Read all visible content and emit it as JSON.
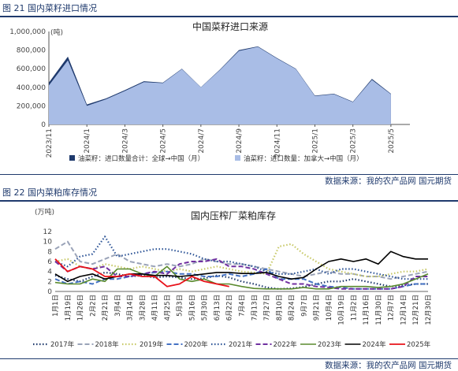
{
  "fig1_caption": "图 21  国内菜籽进口情况",
  "fig2_caption": "图 22  国内菜粕库存情况",
  "source1": "数据来源：我的农产品网  国元期货",
  "source2": "数据来源：我的农产品网  国元期货",
  "colors": {
    "dark": "#1f3a6d",
    "light": "#a9bde6",
    "c2017": "#1f3a6d",
    "c2018": "#9aa3b8",
    "c2019": "#c7c866",
    "c2020": "#4472c4",
    "c2021": "#2e5597",
    "c2022": "#7030a0",
    "c2023": "#5a8a2e",
    "c2024": "#000000",
    "c2025": "#e8121a"
  },
  "chart_data": [
    {
      "type": "area",
      "title": "中国菜籽进口来源",
      "ylabel": "(吨)",
      "ylim": [
        0,
        1000000
      ],
      "yticks": [
        "0",
        "200,000",
        "400,000",
        "600,000",
        "800,000",
        "1,000,000"
      ],
      "xticklabels": [
        "2023/11",
        "2024/1",
        "2024/3",
        "2024/5",
        "2024/7",
        "2024/9",
        "2024/11",
        "2025/1",
        "2025/3",
        "2025/5"
      ],
      "x": [
        "2023/11",
        "2023/12",
        "2024/1",
        "2024/2",
        "2024/3",
        "2024/4",
        "2024/5",
        "2024/6",
        "2024/7",
        "2024/8",
        "2024/9",
        "2024/10",
        "2024/11",
        "2024/12",
        "2025/1",
        "2025/2",
        "2025/3",
        "2025/4",
        "2025/5",
        "2025/6"
      ],
      "series": [
        {
          "name": "油菜籽：进口数量合计：全球→中国（月）",
          "values": [
            450000,
            730000,
            215000,
            280000,
            370000,
            465000,
            450000,
            600000,
            400000,
            590000,
            800000,
            840000,
            715000,
            600000,
            310000,
            330000,
            245000,
            490000,
            330000,
            null
          ]
        },
        {
          "name": "油菜籽：进口数量：加拿大→中国（月）",
          "values": [
            420000,
            690000,
            200000,
            270000,
            360000,
            455000,
            445000,
            595000,
            398000,
            585000,
            790000,
            835000,
            710000,
            595000,
            305000,
            325000,
            240000,
            480000,
            325000,
            null
          ]
        }
      ],
      "legend": "bottom"
    },
    {
      "type": "line",
      "title": "国内压榨厂菜粕库存",
      "ylabel": "(万吨)",
      "ylim": [
        0,
        12
      ],
      "yticks": [
        "0",
        "2",
        "4",
        "6",
        "8",
        "10",
        "12"
      ],
      "categories": [
        "1月1日",
        "1月19日",
        "1月26日",
        "2月2日",
        "2月21日",
        "3月4日",
        "3月14日",
        "3月28日",
        "4月11日",
        "4月25日",
        "5月3日",
        "5月16日",
        "5月30日",
        "6月13日",
        "6月22日",
        "7月4日",
        "7月13日",
        "7月27日",
        "8月10日",
        "8月24日",
        "9月7日",
        "9月21日",
        "10月4日",
        "10月19日",
        "11月2日",
        "11月16日",
        "11月30日",
        "12月7日",
        "12月14日",
        "12月21日",
        "12月30日"
      ],
      "series": [
        {
          "name": "2017年",
          "values": [
            3.2,
            2.5,
            2.0,
            3.0,
            3.8,
            3.5,
            3.0,
            3.2,
            2.8,
            3.0,
            2.8,
            2.5,
            2.6,
            3.2,
            2.8,
            2.0,
            1.5,
            0.8,
            0.5,
            0.6,
            0.9,
            1.5,
            2.0,
            2.0,
            2.5,
            2.0,
            1.5,
            1.0,
            1.2,
            1.5,
            1.5
          ]
        },
        {
          "name": "2018年",
          "values": [
            8.5,
            10.0,
            6.0,
            5.5,
            6.5,
            7.5,
            6.0,
            5.5,
            5.0,
            5.5,
            5.0,
            5.5,
            6.5,
            6.0,
            5.5,
            5.5,
            5.0,
            4.5,
            4.0,
            3.5,
            3.0,
            3.5,
            4.0,
            3.5,
            3.5,
            3.0,
            3.0,
            2.5,
            3.0,
            3.5,
            4.0
          ]
        },
        {
          "name": "2019年",
          "values": [
            6.0,
            6.5,
            5.0,
            4.5,
            5.5,
            5.0,
            4.5,
            5.0,
            4.5,
            4.0,
            4.5,
            4.0,
            4.5,
            5.0,
            4.5,
            4.0,
            3.8,
            3.5,
            9.0,
            9.5,
            7.5,
            6.0,
            4.5,
            4.0,
            3.5,
            3.0,
            3.0,
            3.5,
            4.0,
            4.0,
            4.5
          ]
        },
        {
          "name": "2020年",
          "values": [
            2.5,
            1.5,
            2.0,
            1.5,
            2.5,
            2.5,
            3.0,
            3.5,
            3.8,
            4.0,
            3.5,
            3.5,
            3.0,
            3.0,
            3.5,
            3.0,
            3.5,
            4.5,
            2.5,
            2.5,
            2.5,
            1.5,
            1.0,
            0.8,
            0.5,
            0.5,
            0.5,
            0.5,
            1.0,
            1.5,
            1.5
          ]
        },
        {
          "name": "2021年",
          "values": [
            6.0,
            5.0,
            7.0,
            7.5,
            11.0,
            7.0,
            7.5,
            8.0,
            8.5,
            8.5,
            8.0,
            7.5,
            6.5,
            6.0,
            6.0,
            5.5,
            5.0,
            4.0,
            3.5,
            3.5,
            4.0,
            4.5,
            3.5,
            4.5,
            4.5,
            4.0,
            3.5,
            3.0,
            2.5,
            2.5,
            2.5
          ]
        },
        {
          "name": "2022年",
          "values": [
            6.0,
            4.0,
            5.0,
            4.5,
            5.0,
            3.0,
            3.0,
            3.5,
            4.0,
            3.5,
            5.5,
            6.0,
            6.0,
            6.5,
            5.0,
            5.0,
            4.5,
            3.5,
            2.5,
            1.5,
            1.5,
            1.0,
            0.8,
            0.5,
            0.5,
            0.5,
            0.5,
            0.5,
            1.0,
            3.0,
            3.0
          ]
        },
        {
          "name": "2023年",
          "values": [
            1.8,
            1.5,
            1.5,
            2.5,
            2.0,
            4.5,
            4.5,
            3.5,
            3.0,
            5.0,
            2.5,
            2.0,
            2.5,
            1.5,
            1.5,
            1.0,
            0.6,
            0.5,
            0.5,
            0.5,
            0.8,
            0.5,
            0.5,
            1.0,
            1.0,
            1.0,
            0.8,
            1.0,
            1.5,
            2.5,
            3.5
          ]
        },
        {
          "name": "2024年",
          "values": [
            3.5,
            2.0,
            3.0,
            3.5,
            2.5,
            3.0,
            3.5,
            3.5,
            3.2,
            3.2,
            3.0,
            3.2,
            3.5,
            3.8,
            3.8,
            3.6,
            3.6,
            3.8,
            3.0,
            2.5,
            2.8,
            4.5,
            6.0,
            6.5,
            6.0,
            6.5,
            5.5,
            8.0,
            7.0,
            6.5,
            6.5
          ]
        },
        {
          "name": "2025年",
          "values": [
            6.5,
            4.0,
            5.0,
            4.5,
            3.0,
            3.0,
            3.5,
            3.0,
            3.0,
            1.0,
            1.5,
            3.0,
            2.0,
            1.5,
            1.0,
            null,
            null,
            null,
            null,
            null,
            null,
            null,
            null,
            null,
            null,
            null,
            null,
            null,
            null,
            null,
            null
          ]
        }
      ],
      "legend": "bottom"
    }
  ]
}
